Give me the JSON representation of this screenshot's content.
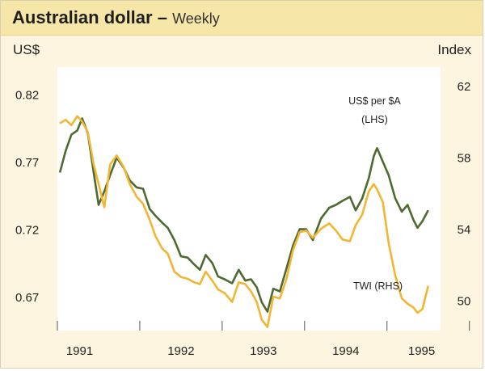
{
  "header": {
    "title": "Australian dollar",
    "dash": "–",
    "subtitle": "Weekly"
  },
  "chart_data": {
    "type": "line",
    "title": "Australian dollar",
    "subtitle": "Weekly",
    "left_axis": {
      "unit": "US$",
      "range": [
        0.645,
        0.84
      ],
      "ticks": [
        "0.82",
        "0.77",
        "0.72",
        "0.67"
      ],
      "tick_values": [
        0.82,
        0.77,
        0.72,
        0.67
      ]
    },
    "right_axis": {
      "unit": "Index",
      "range": [
        48.3,
        63.05
      ],
      "ticks": [
        "62",
        "58",
        "54",
        "50"
      ],
      "tick_values": [
        62,
        58,
        54,
        50
      ]
    },
    "x_axis": {
      "range": [
        1991.0,
        1995.65
      ],
      "labels": [
        "1991",
        "1992",
        "1993",
        "1994",
        "1995"
      ],
      "label_positions": [
        1991.27,
        1992.5,
        1993.5,
        1994.5,
        1995.42
      ],
      "year_boundaries": [
        1992,
        1993,
        1994,
        1995,
        1996
      ]
    },
    "grid": false,
    "series": [
      {
        "name": "US$ per $A",
        "label_lines": [
          "US$ per $A",
          "(LHS)"
        ],
        "axis": "left",
        "color": "#4f6a31",
        "points": [
          [
            1991.03,
            0.762
          ],
          [
            1991.1,
            0.778
          ],
          [
            1991.17,
            0.79
          ],
          [
            1991.24,
            0.793
          ],
          [
            1991.3,
            0.802
          ],
          [
            1991.37,
            0.791
          ],
          [
            1991.44,
            0.762
          ],
          [
            1991.5,
            0.738
          ],
          [
            1991.57,
            0.748
          ],
          [
            1991.64,
            0.76
          ],
          [
            1991.72,
            0.773
          ],
          [
            1991.8,
            0.766
          ],
          [
            1991.88,
            0.756
          ],
          [
            1991.96,
            0.751
          ],
          [
            1992.04,
            0.75
          ],
          [
            1992.12,
            0.735
          ],
          [
            1992.19,
            0.73
          ],
          [
            1992.27,
            0.725
          ],
          [
            1992.34,
            0.721
          ],
          [
            1992.42,
            0.712
          ],
          [
            1992.5,
            0.7
          ],
          [
            1992.58,
            0.699
          ],
          [
            1992.66,
            0.694
          ],
          [
            1992.73,
            0.69
          ],
          [
            1992.8,
            0.701
          ],
          [
            1992.88,
            0.695
          ],
          [
            1992.95,
            0.685
          ],
          [
            1993.03,
            0.683
          ],
          [
            1993.12,
            0.68
          ],
          [
            1993.2,
            0.69
          ],
          [
            1993.28,
            0.682
          ],
          [
            1993.35,
            0.683
          ],
          [
            1993.42,
            0.677
          ],
          [
            1993.48,
            0.666
          ],
          [
            1993.55,
            0.659
          ],
          [
            1993.62,
            0.676
          ],
          [
            1993.7,
            0.674
          ],
          [
            1993.78,
            0.691
          ],
          [
            1993.86,
            0.708
          ],
          [
            1993.94,
            0.72
          ],
          [
            1994.02,
            0.72
          ],
          [
            1994.1,
            0.712
          ],
          [
            1994.2,
            0.728
          ],
          [
            1994.3,
            0.736
          ],
          [
            1994.38,
            0.738
          ],
          [
            1994.46,
            0.741
          ],
          [
            1994.55,
            0.744
          ],
          [
            1994.62,
            0.734
          ],
          [
            1994.7,
            0.743
          ],
          [
            1994.78,
            0.758
          ],
          [
            1994.84,
            0.774
          ],
          [
            1994.88,
            0.78
          ],
          [
            1994.95,
            0.77
          ],
          [
            1995.02,
            0.76
          ],
          [
            1995.1,
            0.743
          ],
          [
            1995.18,
            0.733
          ],
          [
            1995.25,
            0.738
          ],
          [
            1995.32,
            0.727
          ],
          [
            1995.37,
            0.721
          ],
          [
            1995.43,
            0.726
          ],
          [
            1995.5,
            0.734
          ]
        ]
      },
      {
        "name": "TWI (RHS)",
        "label_lines": [
          "TWI (RHS)"
        ],
        "axis": "right",
        "color": "#f2b633",
        "points": [
          [
            1991.03,
            59.9
          ],
          [
            1991.1,
            60.1
          ],
          [
            1991.17,
            59.8
          ],
          [
            1991.24,
            60.3
          ],
          [
            1991.3,
            60.0
          ],
          [
            1991.37,
            59.4
          ],
          [
            1991.44,
            57.6
          ],
          [
            1991.5,
            56.5
          ],
          [
            1991.57,
            55.2
          ],
          [
            1991.64,
            57.6
          ],
          [
            1991.72,
            58.1
          ],
          [
            1991.8,
            57.5
          ],
          [
            1991.88,
            56.5
          ],
          [
            1991.96,
            55.8
          ],
          [
            1992.04,
            55.4
          ],
          [
            1992.12,
            54.5
          ],
          [
            1992.19,
            53.6
          ],
          [
            1992.27,
            52.9
          ],
          [
            1992.34,
            52.6
          ],
          [
            1992.42,
            51.6
          ],
          [
            1992.5,
            51.3
          ],
          [
            1992.58,
            51.2
          ],
          [
            1992.66,
            51.0
          ],
          [
            1992.73,
            50.9
          ],
          [
            1992.8,
            51.6
          ],
          [
            1992.88,
            51.1
          ],
          [
            1992.95,
            50.6
          ],
          [
            1993.03,
            50.4
          ],
          [
            1993.12,
            49.9
          ],
          [
            1993.2,
            51.0
          ],
          [
            1993.28,
            50.9
          ],
          [
            1993.35,
            50.5
          ],
          [
            1993.42,
            49.9
          ],
          [
            1993.48,
            48.9
          ],
          [
            1993.55,
            48.5
          ],
          [
            1993.62,
            50.2
          ],
          [
            1993.7,
            50.1
          ],
          [
            1993.78,
            51.2
          ],
          [
            1993.86,
            52.8
          ],
          [
            1993.94,
            53.8
          ],
          [
            1994.02,
            53.9
          ],
          [
            1994.1,
            53.5
          ],
          [
            1994.2,
            54.0
          ],
          [
            1994.3,
            54.3
          ],
          [
            1994.38,
            53.9
          ],
          [
            1994.46,
            53.4
          ],
          [
            1994.55,
            53.3
          ],
          [
            1994.62,
            54.2
          ],
          [
            1994.7,
            54.8
          ],
          [
            1994.78,
            56.1
          ],
          [
            1994.84,
            56.5
          ],
          [
            1994.88,
            56.2
          ],
          [
            1994.95,
            55.5
          ],
          [
            1995.02,
            53.2
          ],
          [
            1995.1,
            51.4
          ],
          [
            1995.18,
            50.1
          ],
          [
            1995.25,
            49.8
          ],
          [
            1995.32,
            49.6
          ],
          [
            1995.37,
            49.3
          ],
          [
            1995.43,
            49.5
          ],
          [
            1995.5,
            50.8
          ]
        ]
      }
    ]
  }
}
